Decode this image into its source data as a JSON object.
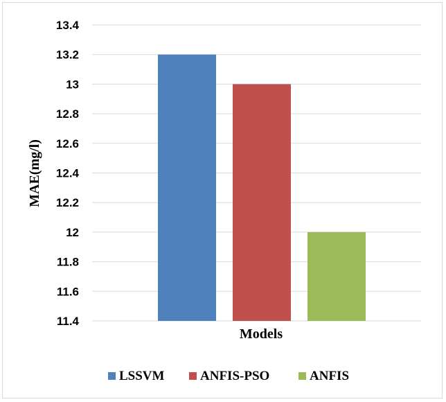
{
  "chart_data": {
    "type": "bar",
    "title": "",
    "xlabel": "Models",
    "ylabel": "MAE(mg/l)",
    "ylim": [
      11.4,
      13.4
    ],
    "yticks": [
      11.4,
      11.6,
      11.8,
      12,
      12.2,
      12.4,
      12.6,
      12.8,
      13,
      13.2,
      13.4
    ],
    "ytick_labels": [
      "11.4",
      "11.6",
      "11.8",
      "12",
      "12.2",
      "12.4",
      "12.6",
      "12.8",
      "13",
      "13.2",
      "13.4"
    ],
    "categories": [
      ""
    ],
    "series": [
      {
        "name": "LSSVM",
        "values": [
          13.2
        ],
        "color": "#4f81bd"
      },
      {
        "name": "ANFIS-PSO",
        "values": [
          13.0
        ],
        "color": "#c0504d"
      },
      {
        "name": "ANFIS",
        "values": [
          12.0
        ],
        "color": "#9bbb59"
      }
    ],
    "grid": true,
    "legend_position": "bottom"
  }
}
